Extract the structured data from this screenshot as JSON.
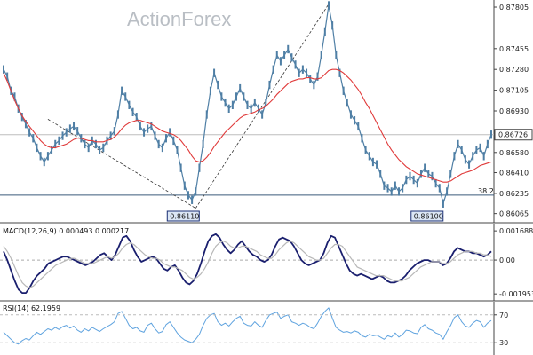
{
  "watermark": "ActionForex",
  "colors": {
    "price": "#4f7fa5",
    "sma": "#e03a3a",
    "macd": "#1a1f6e",
    "signal": "#b8b8b8",
    "rsi": "#5fa3df",
    "grid": "#d8d8d8",
    "box_bg": "#dbe6f5",
    "box_border": "#1a2f74"
  },
  "chart_data": [
    {
      "type": "line",
      "panel": "price",
      "y_ticks": [
        "0.87805",
        "0.87455",
        "0.87280",
        "0.87105",
        "0.86930",
        "0.86755",
        "0.86580",
        "0.86410",
        "0.86235",
        "0.86065"
      ],
      "ylim": [
        0.8601,
        0.8785
      ],
      "current_value": "0.86726",
      "series": [
        {
          "name": "",
          "values": [
            0.8728,
            0.8722,
            0.871,
            0.8705,
            0.8695,
            0.8688,
            0.8682,
            0.8675,
            0.867,
            0.8662,
            0.8655,
            0.865,
            0.8655,
            0.866,
            0.8665,
            0.8668,
            0.8672,
            0.8675,
            0.8678,
            0.868,
            0.8676,
            0.867,
            0.8665,
            0.8662,
            0.8668,
            0.8665,
            0.866,
            0.8662,
            0.8668,
            0.8672,
            0.8676,
            0.869,
            0.871,
            0.8705,
            0.8698,
            0.8692,
            0.8688,
            0.868,
            0.8675,
            0.8678,
            0.868,
            0.8672,
            0.8665,
            0.8662,
            0.867,
            0.8675,
            0.8668,
            0.866,
            0.8645,
            0.863,
            0.8622,
            0.8618,
            0.8625,
            0.8645,
            0.8665,
            0.869,
            0.871,
            0.8725,
            0.8715,
            0.8705,
            0.87,
            0.8695,
            0.8698,
            0.8705,
            0.8712,
            0.8705,
            0.8698,
            0.8695,
            0.87,
            0.8695,
            0.869,
            0.87,
            0.8715,
            0.8728,
            0.874,
            0.8735,
            0.874,
            0.8745,
            0.8738,
            0.8732,
            0.8725,
            0.8728,
            0.8725,
            0.872,
            0.8715,
            0.8722,
            0.874,
            0.876,
            0.8782,
            0.8765,
            0.874,
            0.8725,
            0.871,
            0.87,
            0.869,
            0.8685,
            0.868,
            0.867,
            0.866,
            0.8655,
            0.865,
            0.8648,
            0.864,
            0.863,
            0.8628,
            0.8625,
            0.863,
            0.8625,
            0.8628,
            0.8635,
            0.8638,
            0.8635,
            0.8632,
            0.864,
            0.8645,
            0.864,
            0.8638,
            0.8632,
            0.8628,
            0.8615,
            0.8625,
            0.864,
            0.8655,
            0.8665,
            0.866,
            0.8652,
            0.8648,
            0.8655,
            0.866,
            0.8662,
            0.8655,
            0.8665,
            0.8673
          ]
        },
        {
          "name": "",
          "values": [
            0.8725,
            0.8718,
            0.871,
            0.8702,
            0.8695,
            0.8689,
            0.8684,
            0.868,
            0.8676,
            0.8672,
            0.8668,
            0.8665,
            0.8663,
            0.8662,
            0.8662,
            0.8663,
            0.8664,
            0.8665,
            0.8667,
            0.8669,
            0.867,
            0.867,
            0.8669,
            0.8668,
            0.8668,
            0.8667,
            0.8667,
            0.8667,
            0.8668,
            0.8669,
            0.8671,
            0.8674,
            0.8678,
            0.8681,
            0.8683,
            0.8684,
            0.8685,
            0.8685,
            0.8684,
            0.8683,
            0.8682,
            0.868,
            0.8678,
            0.8676,
            0.8675,
            0.8674,
            0.8673,
            0.8671,
            0.8668,
            0.8664,
            0.866,
            0.8655,
            0.8651,
            0.865,
            0.8651,
            0.8654,
            0.8658,
            0.8663,
            0.8667,
            0.8671,
            0.8675,
            0.8678,
            0.8681,
            0.8684,
            0.8687,
            0.8689,
            0.869,
            0.8691,
            0.8692,
            0.8694,
            0.8695,
            0.8697,
            0.87,
            0.8703,
            0.8707,
            0.871,
            0.8713,
            0.8716,
            0.8718,
            0.8719,
            0.872,
            0.872,
            0.8721,
            0.8721,
            0.872,
            0.872,
            0.8721,
            0.8724,
            0.8727,
            0.8728,
            0.8728,
            0.8727,
            0.8725,
            0.8722,
            0.8719,
            0.8715,
            0.8711,
            0.8706,
            0.87,
            0.8695,
            0.8689,
            0.8683,
            0.8677,
            0.8671,
            0.8665,
            0.866,
            0.8656,
            0.8652,
            0.8649,
            0.8646,
            0.8644,
            0.8642,
            0.864,
            0.8639,
            0.8638,
            0.8637,
            0.8636,
            0.8635,
            0.8634,
            0.8633,
            0.8633,
            0.8634,
            0.8636,
            0.8638,
            0.864,
            0.8641,
            0.8642,
            0.8643,
            0.8645,
            0.8647,
            0.8648,
            0.8649,
            0.865
          ]
        }
      ],
      "annotations": [
        {
          "label": "0.86110",
          "at_index": 52,
          "value": 0.8611
        },
        {
          "label": "0.86100",
          "at_index": 118,
          "value": 0.861
        },
        {
          "label": "38.2",
          "value": 0.8622
        }
      ],
      "reference_line": 0.8673
    },
    {
      "type": "line",
      "panel": "macd",
      "title": "MACD(12,26,9) 0.000493 0.000217",
      "y_ticks": [
        "0.001688",
        "0.00",
        "-0.001953"
      ],
      "ylim": [
        -0.0022,
        0.0019
      ],
      "series": [
        {
          "name": "",
          "values": [
            0.0005,
            0.0,
            -0.0006,
            -0.0012,
            -0.0017,
            -0.0019,
            -0.0019,
            -0.0016,
            -0.0012,
            -0.0009,
            -0.0007,
            -0.0005,
            -0.0002,
            -0.0001,
            0.0,
            0.0001,
            0.0002,
            0.0002,
            0.0001,
            0.0,
            -0.0001,
            -0.0002,
            -0.0003,
            -0.0002,
            -0.0001,
            0.0001,
            0.0003,
            0.0004,
            0.0002,
            0.0,
            0.0003,
            0.0008,
            0.0013,
            0.0014,
            0.0011,
            0.0006,
            0.0002,
            -0.0001,
            0.0,
            0.0001,
            0.0002,
            0.0001,
            -0.0002,
            -0.0005,
            -0.0006,
            -0.0004,
            -0.0003,
            -0.0006,
            -0.001,
            -0.0013,
            -0.0014,
            -0.0012,
            -0.0008,
            -0.0002,
            0.0005,
            0.0011,
            0.0014,
            0.0015,
            0.0013,
            0.0009,
            0.0006,
            0.0004,
            0.0006,
            0.0009,
            0.0011,
            0.0008,
            0.0005,
            0.0003,
            0.0002,
            0.0,
            -0.0001,
            0.0,
            0.0003,
            0.0008,
            0.0012,
            0.0013,
            0.0012,
            0.0011,
            0.0008,
            0.0004,
            0.0,
            -0.0002,
            -0.0003,
            -0.0002,
            -0.0001,
            0.0,
            0.0004,
            0.001,
            0.0014,
            0.0013,
            0.0008,
            0.0003,
            -0.0002,
            -0.0006,
            -0.0008,
            -0.0009,
            -0.0008,
            -0.0009,
            -0.001,
            -0.0011,
            -0.001,
            -0.0009,
            -0.001,
            -0.0012,
            -0.0013,
            -0.0013,
            -0.0012,
            -0.0011,
            -0.0009,
            -0.0006,
            -0.0004,
            -0.0002,
            -0.0001,
            0.0,
            0.0,
            -0.0001,
            -0.0001,
            -0.0001,
            -0.0003,
            -0.0002,
            0.0001,
            0.0005,
            0.0007,
            0.0006,
            0.0005,
            0.0005,
            0.0004,
            0.0004,
            0.0003,
            0.0002,
            0.0003,
            0.0005
          ]
        },
        {
          "name": "",
          "values": [
            0.0008,
            0.0005,
            0.0001,
            -0.0004,
            -0.0009,
            -0.0013,
            -0.0015,
            -0.0016,
            -0.0015,
            -0.0013,
            -0.0011,
            -0.0009,
            -0.0007,
            -0.0005,
            -0.0003,
            -0.0002,
            -0.0001,
            0.0,
            0.0001,
            0.0001,
            0.0,
            -0.0001,
            -0.0002,
            -0.0002,
            -0.0002,
            -0.0001,
            0.0,
            0.0001,
            0.0002,
            0.0001,
            0.0002,
            0.0004,
            0.0007,
            0.0009,
            0.001,
            0.0009,
            0.0007,
            0.0005,
            0.0003,
            0.0002,
            0.0001,
            0.0001,
            0.0,
            -0.0002,
            -0.0003,
            -0.0004,
            -0.0004,
            -0.0005,
            -0.0006,
            -0.0008,
            -0.001,
            -0.0011,
            -0.001,
            -0.0008,
            -0.0005,
            -0.0001,
            0.0004,
            0.0008,
            0.001,
            0.0011,
            0.001,
            0.0008,
            0.0007,
            0.0007,
            0.0008,
            0.0008,
            0.0007,
            0.0006,
            0.0005,
            0.0003,
            0.0002,
            0.0001,
            0.0001,
            0.0003,
            0.0006,
            0.0008,
            0.001,
            0.0011,
            0.001,
            0.0008,
            0.0006,
            0.0004,
            0.0002,
            0.0001,
            0.0,
            0.0,
            0.0001,
            0.0004,
            0.0007,
            0.0009,
            0.0009,
            0.0008,
            0.0005,
            0.0002,
            -0.0001,
            -0.0004,
            -0.0005,
            -0.0006,
            -0.0007,
            -0.0008,
            -0.0009,
            -0.0009,
            -0.0009,
            -0.001,
            -0.0011,
            -0.0012,
            -0.0012,
            -0.0012,
            -0.0011,
            -0.001,
            -0.0008,
            -0.0006,
            -0.0004,
            -0.0003,
            -0.0002,
            -0.0001,
            -0.0001,
            -0.0001,
            -0.0002,
            -0.0002,
            -0.0001,
            0.0001,
            0.0003,
            0.0004,
            0.0005,
            0.0005,
            0.0005,
            0.0004,
            0.0004,
            0.0003,
            0.0003,
            0.0002
          ]
        }
      ]
    },
    {
      "type": "line",
      "panel": "rsi",
      "title": "RSI(14) 62.1959",
      "y_ticks": [
        "70",
        "30"
      ],
      "ylim": [
        15,
        85
      ],
      "series": [
        {
          "name": "",
          "values": [
            45,
            40,
            35,
            30,
            28,
            33,
            36,
            34,
            40,
            45,
            42,
            46,
            50,
            48,
            52,
            49,
            53,
            55,
            51,
            54,
            48,
            45,
            50,
            47,
            52,
            49,
            46,
            50,
            53,
            56,
            60,
            72,
            75,
            65,
            55,
            50,
            52,
            47,
            45,
            55,
            58,
            50,
            44,
            46,
            56,
            60,
            52,
            44,
            38,
            34,
            32,
            30,
            35,
            42,
            55,
            65,
            70,
            72,
            60,
            55,
            58,
            54,
            60,
            65,
            68,
            58,
            55,
            54,
            60,
            55,
            52,
            62,
            70,
            72,
            74,
            65,
            68,
            70,
            60,
            58,
            55,
            58,
            56,
            52,
            50,
            58,
            68,
            75,
            80,
            65,
            52,
            48,
            45,
            46,
            44,
            47,
            45,
            40,
            38,
            42,
            40,
            41,
            38,
            35,
            40,
            38,
            44,
            38,
            42,
            48,
            47,
            44,
            43,
            52,
            56,
            50,
            48,
            44,
            42,
            35,
            46,
            55,
            66,
            70,
            60,
            54,
            52,
            58,
            62,
            60,
            52,
            58,
            62
          ]
        }
      ]
    }
  ]
}
